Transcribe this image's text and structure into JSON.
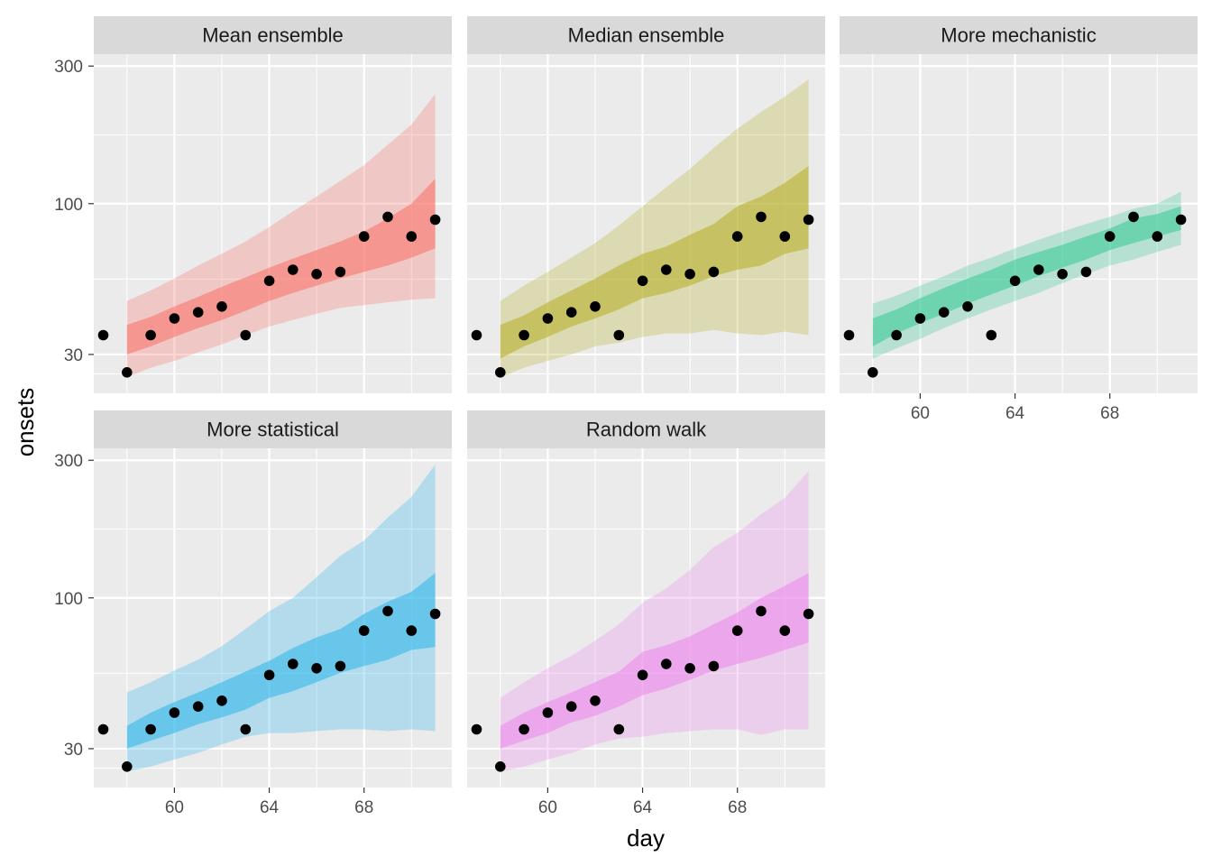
{
  "chart_data": {
    "type": "area",
    "xlabel": "day",
    "ylabel": "onsets",
    "y_scale": "log10",
    "ylim": [
      22,
      330
    ],
    "xlim": [
      56.6,
      71.7
    ],
    "x_ticks": [
      60,
      64,
      68
    ],
    "y_ticks": [
      30,
      100,
      300
    ],
    "facet_layout": "3 columns x 2 rows",
    "legend": "none",
    "grid": true,
    "observed": {
      "x": [
        57,
        58,
        59,
        60,
        61,
        62,
        63,
        64,
        65,
        66,
        67,
        68,
        69,
        70,
        71
      ],
      "y": [
        35,
        26,
        35,
        40,
        42,
        44,
        35,
        54,
        59,
        57,
        58,
        77,
        90,
        77,
        88
      ]
    },
    "panels": [
      {
        "name": "Mean ensemble",
        "color": "#F8766D",
        "x": [
          58,
          59,
          60,
          61,
          62,
          63,
          64,
          65,
          66,
          67,
          68,
          69,
          70,
          71
        ],
        "lower90": [
          25,
          27,
          28.5,
          30.5,
          32.5,
          35,
          37.5,
          39.5,
          41.5,
          43.5,
          44.5,
          45.5,
          46.5,
          47
        ],
        "lower50": [
          30,
          32,
          34.5,
          37,
          39.5,
          42.5,
          46,
          49,
          52,
          55,
          58,
          61,
          65,
          70
        ],
        "upper50": [
          38,
          40.5,
          44,
          47.5,
          51.5,
          55.5,
          60,
          64.5,
          69,
          74,
          80,
          89,
          100,
          122
        ],
        "upper90": [
          46,
          50,
          55,
          61,
          67,
          74,
          83,
          94,
          106,
          120,
          136,
          160,
          188,
          240
        ]
      },
      {
        "name": "Median ensemble",
        "color": "#B8B32E",
        "x": [
          58,
          59,
          60,
          61,
          62,
          63,
          64,
          65,
          66,
          67,
          68,
          69,
          70,
          71
        ],
        "lower90": [
          25,
          27,
          28.5,
          30,
          32,
          33,
          34.5,
          35.5,
          35.5,
          36.5,
          35.5,
          35,
          36,
          35
        ],
        "lower50": [
          29,
          32,
          34.5,
          37.5,
          40,
          43,
          47,
          49,
          52,
          56,
          59,
          61,
          67,
          70
        ],
        "upper50": [
          38,
          41,
          45.5,
          50,
          55,
          61,
          67,
          71,
          78,
          85,
          98,
          106,
          118,
          135
        ],
        "upper90": [
          46,
          52,
          58,
          65,
          73,
          84,
          98,
          114,
          132,
          156,
          182,
          208,
          235,
          270
        ]
      },
      {
        "name": "More mechanistic",
        "color": "#3DCB98",
        "x": [
          58,
          59,
          60,
          61,
          62,
          63,
          64,
          65,
          66,
          67,
          68,
          69,
          70,
          71
        ],
        "lower90": [
          29,
          31.5,
          34,
          37,
          40,
          43,
          46,
          49,
          53,
          57,
          61,
          64,
          68,
          72
        ],
        "lower50": [
          32,
          35.5,
          38.5,
          41.5,
          45,
          48.5,
          52,
          56,
          60,
          64,
          69,
          73,
          77,
          81
        ],
        "upper50": [
          40,
          43,
          47,
          51,
          55,
          59,
          64,
          68,
          72,
          77,
          82,
          89,
          92,
          98
        ],
        "upper90": [
          45,
          48,
          52,
          56,
          61,
          65,
          70,
          75,
          80,
          85,
          90,
          96,
          100,
          110
        ]
      },
      {
        "name": "More statistical",
        "color": "#35B7EB",
        "x": [
          58,
          59,
          60,
          61,
          62,
          63,
          64,
          65,
          66,
          67,
          68,
          69,
          70,
          71
        ],
        "lower90": [
          25,
          26,
          27.5,
          29,
          31,
          33,
          34,
          34,
          34.5,
          35,
          35,
          34.5,
          35,
          34.5
        ],
        "lower50": [
          30,
          32,
          34,
          36.5,
          38.5,
          41,
          45,
          47.5,
          51,
          55,
          58,
          61,
          66,
          67.5
        ],
        "upper50": [
          36,
          40,
          43.5,
          47,
          51,
          55.5,
          60.5,
          67,
          73,
          78,
          88,
          97,
          105,
          122
        ],
        "upper90": [
          47,
          51,
          56,
          61,
          68,
          78,
          90,
          100,
          118,
          140,
          158,
          190,
          224,
          290
        ]
      },
      {
        "name": "Random walk",
        "color": "#EC8CEB",
        "x": [
          58,
          59,
          60,
          61,
          62,
          63,
          64,
          65,
          66,
          67,
          68,
          69,
          70,
          71
        ],
        "lower90": [
          25,
          26,
          27.5,
          29,
          31,
          32.5,
          33,
          34,
          34.5,
          35,
          35,
          33.5,
          35,
          35
        ],
        "lower50": [
          30,
          32,
          34,
          37,
          39,
          42,
          46,
          48.5,
          52,
          56,
          59,
          62,
          66,
          70
        ],
        "upper50": [
          36,
          40,
          43.5,
          47,
          51,
          55.5,
          65,
          68.5,
          73.5,
          81,
          89,
          100,
          110,
          122
        ],
        "upper90": [
          45,
          51,
          57,
          63,
          71,
          81,
          96,
          108,
          125,
          150,
          168,
          195,
          222,
          275
        ]
      }
    ]
  }
}
